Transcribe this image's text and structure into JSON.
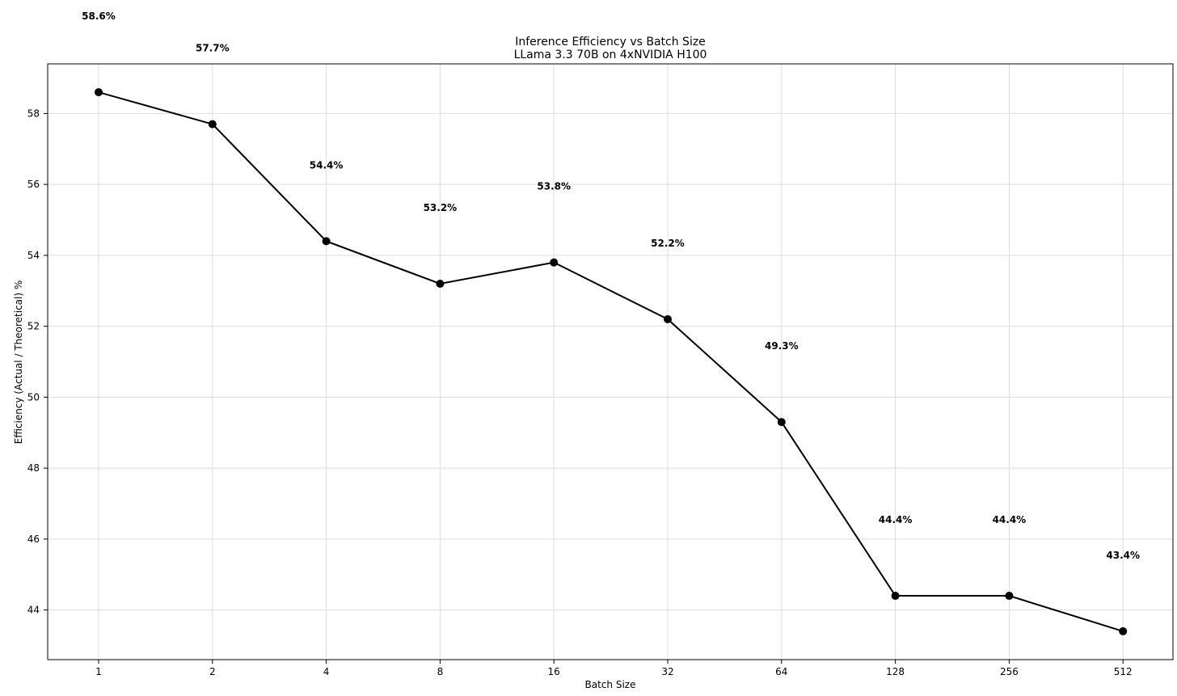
{
  "chart_data": {
    "type": "line",
    "title": "Inference Efficiency vs Batch Size",
    "subtitle": "LLama 3.3 70B on 4xNVIDIA H100",
    "xlabel": "Batch Size",
    "ylabel": "Efficiency (Actual / Theoretical) %",
    "x_scale": "log2",
    "categories": [
      "1",
      "2",
      "4",
      "8",
      "16",
      "32",
      "64",
      "128",
      "256",
      "512"
    ],
    "values": [
      58.6,
      57.7,
      54.4,
      53.2,
      53.8,
      52.2,
      49.3,
      44.4,
      44.4,
      43.4
    ],
    "data_labels": [
      "58.6%",
      "57.7%",
      "54.4%",
      "53.2%",
      "53.8%",
      "52.2%",
      "49.3%",
      "44.4%",
      "44.4%",
      "43.4%"
    ],
    "yticks": [
      44,
      46,
      48,
      50,
      52,
      54,
      56,
      58
    ],
    "ylim": [
      42.6,
      59.4
    ],
    "grid": true,
    "series_color": "#000000",
    "grid_color": "#dddddd"
  }
}
